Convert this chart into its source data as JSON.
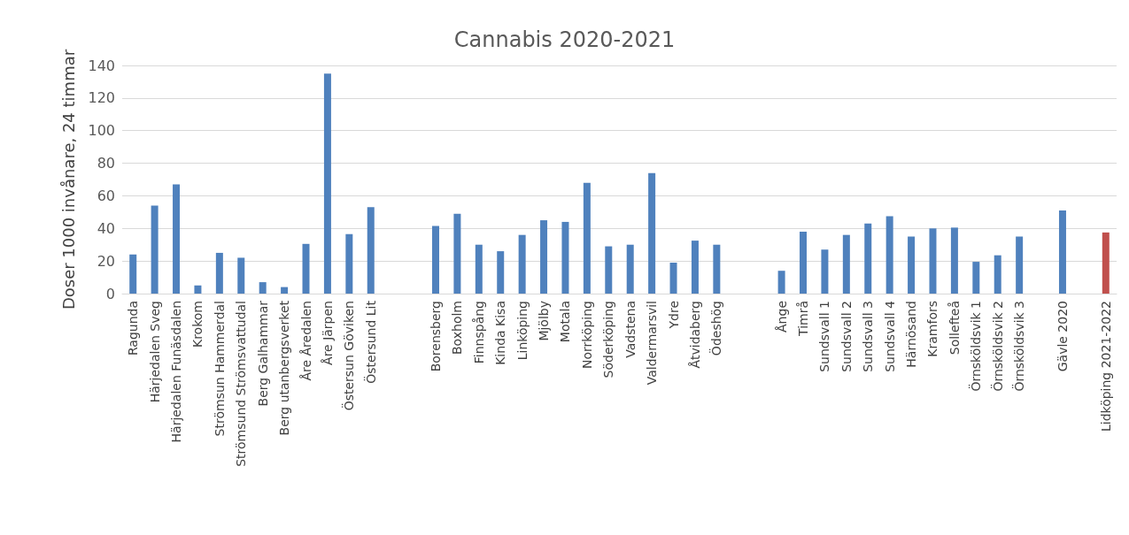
{
  "chart_data": {
    "type": "bar",
    "title": "Cannabis 2020-2021",
    "ylabel": "Doser 1000 invånare, 24 timmar",
    "categories": [
      "Ragunda",
      "Härjedalen Sveg",
      "Härjedalen Funäsdalen",
      "Krokom",
      "Strömsun Hammerdal",
      "Strömsund Strömsvattudal",
      "Berg Galhammar",
      "Berg utanbergsverket",
      "Åre Åredalen",
      "Åre Järpen",
      "Östersun Göviken",
      "Östersund Lit",
      null,
      null,
      "Borensberg",
      "Boxholm",
      "Finnspång",
      "Kinda Kisa",
      "Linköping",
      "Mjölby",
      "Motala",
      "Norrköping",
      "Söderköping",
      "Vadstena",
      "Valdermarsvil",
      "Ydre",
      "Åtvidaberg",
      "Ödeshög",
      null,
      null,
      "Ånge",
      "Timrå",
      "Sundsvall 1",
      "Sundsvall 2",
      "Sundsvall 3",
      "Sundsvall 4",
      "Härnösand",
      "Kramfors",
      "Sollefteå",
      "Örnsköldsvik 1",
      "Örnsköldsvik 2",
      "Örnsköldsvik 3",
      null,
      "Gävle 2020",
      null,
      "Lidköping 2021-2022"
    ],
    "values": [
      24,
      54,
      67,
      5,
      25,
      22,
      7,
      4,
      30.5,
      135,
      36.5,
      53,
      null,
      null,
      41.5,
      49,
      30,
      26,
      36,
      45,
      44,
      68,
      29,
      30,
      74,
      19,
      32.5,
      30,
      null,
      null,
      14,
      38,
      27,
      36,
      43,
      47.5,
      35,
      40,
      40.5,
      19.5,
      23.5,
      35,
      null,
      51,
      null,
      37.5
    ],
    "colors": [
      "#4f81bd",
      "#4f81bd",
      "#4f81bd",
      "#4f81bd",
      "#4f81bd",
      "#4f81bd",
      "#4f81bd",
      "#4f81bd",
      "#4f81bd",
      "#4f81bd",
      "#4f81bd",
      "#4f81bd",
      "#4f81bd",
      "#4f81bd",
      "#4f81bd",
      "#4f81bd",
      "#4f81bd",
      "#4f81bd",
      "#4f81bd",
      "#4f81bd",
      "#4f81bd",
      "#4f81bd",
      "#4f81bd",
      "#4f81bd",
      "#4f81bd",
      "#4f81bd",
      "#4f81bd",
      "#4f81bd",
      "#4f81bd",
      "#4f81bd",
      "#4f81bd",
      "#4f81bd",
      "#4f81bd",
      "#4f81bd",
      "#4f81bd",
      "#4f81bd",
      "#4f81bd",
      "#4f81bd",
      "#4f81bd",
      "#4f81bd",
      "#4f81bd",
      "#4f81bd",
      "#4f81bd",
      "#4f81bd",
      "#4f81bd",
      "#c0504d"
    ],
    "ylim": [
      0,
      140
    ],
    "yticks": [
      0,
      20,
      40,
      60,
      80,
      100,
      120,
      140
    ],
    "grid": "y"
  }
}
